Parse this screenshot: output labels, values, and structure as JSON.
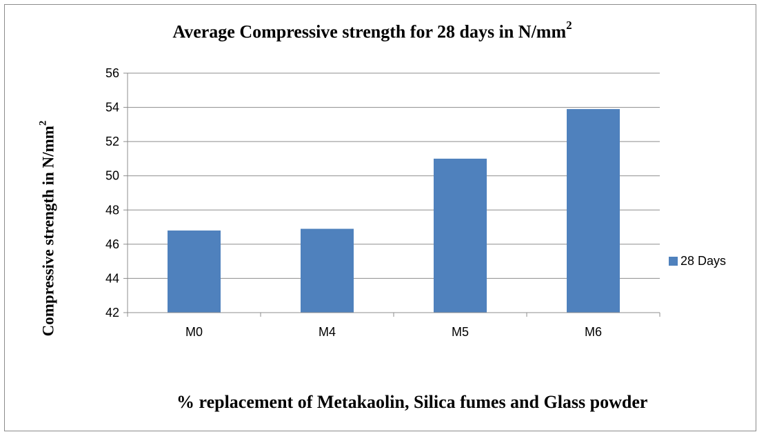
{
  "chart_data": {
    "type": "bar",
    "title": "Average Compressive strength for 28 days in N/mm",
    "title_sup": "2",
    "ylabel": "Compressive strength in  N/mm",
    "ylabel_sup": "2",
    "xlabel": "% replacement of Metakaolin, Silica fumes and Glass powder",
    "categories": [
      "M0",
      "M4",
      "M5",
      "M6"
    ],
    "series": [
      {
        "name": "28 Days",
        "values": [
          46.8,
          46.9,
          51.0,
          53.9
        ],
        "color": "#4f81bd"
      }
    ],
    "ylim": [
      42,
      56
    ],
    "yticks": [
      42,
      44,
      46,
      48,
      50,
      52,
      54,
      56
    ],
    "grid": true,
    "legend": "right"
  }
}
